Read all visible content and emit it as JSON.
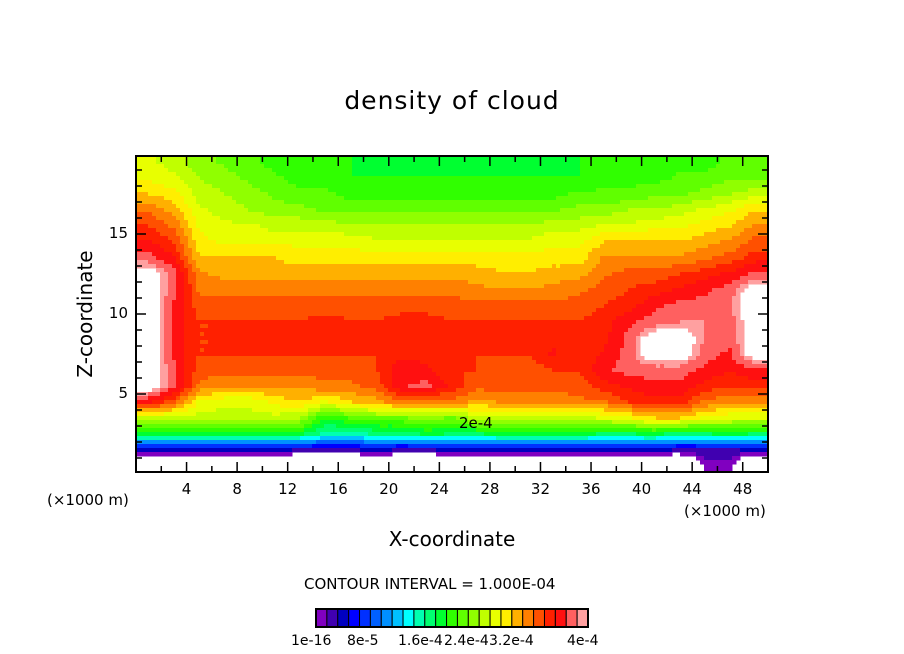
{
  "chart_data": {
    "type": "heatmap",
    "title": "density of cloud",
    "xlabel": "X-coordinate",
    "ylabel": "Z-coordinate",
    "x_unit": "(×1000 m)",
    "z_unit": "(×1000 m)",
    "xlim": [
      0,
      50
    ],
    "ylim": [
      0,
      19.9
    ],
    "x_ticks": [
      "4",
      "8",
      "12",
      "16",
      "20",
      "24",
      "28",
      "32",
      "36",
      "40",
      "44",
      "48"
    ],
    "x_tick_values": [
      4,
      8,
      12,
      16,
      20,
      24,
      28,
      32,
      36,
      40,
      44,
      48
    ],
    "y_ticks": [
      "5",
      "10",
      "15"
    ],
    "y_tick_values": [
      5,
      10,
      15
    ],
    "contour_interval": "CONTOUR INTERVAL = 1.000E-04",
    "contour_annotation": "2e-4",
    "value_unit": "1e-4",
    "colorbar_labels": [
      "1e-16",
      "8e-5",
      "1.6e-4",
      "2.4e-4",
      "3.2e-4",
      "4e-4"
    ],
    "colorbar_colors": [
      "#8000c0",
      "#4000b0",
      "#0000c0",
      "#0000ff",
      "#0030ff",
      "#0060ff",
      "#0090ff",
      "#00c0ff",
      "#00ffff",
      "#00ffb0",
      "#00ff70",
      "#00ff30",
      "#30ff00",
      "#60ff00",
      "#90ff00",
      "#c0ff00",
      "#e8ff00",
      "#ffee00",
      "#ffb000",
      "#ff8000",
      "#ff5000",
      "#ff2000",
      "#ff1010",
      "#ff6060",
      "#ffa0a0"
    ],
    "grid_x": [
      1,
      3,
      5,
      7,
      9,
      11,
      13,
      15,
      17,
      19,
      21,
      23,
      25,
      27,
      29,
      31,
      33,
      35,
      37,
      39,
      41,
      43,
      45,
      47,
      49
    ],
    "grid_z": [
      19.5,
      18.5,
      17.5,
      16.5,
      15.5,
      14.5,
      13.5,
      12.5,
      11.5,
      10.5,
      9.5,
      8.5,
      7.5,
      6.5,
      5.5,
      4.5,
      3.5,
      2.5,
      1.5,
      0.5
    ],
    "values": [
      [
        2.7,
        2.6,
        2.4,
        2.3,
        2.2,
        2.1,
        2.1,
        2.0,
        2.0,
        1.9,
        1.9,
        1.9,
        1.9,
        1.9,
        1.9,
        1.9,
        1.9,
        2.0,
        2.0,
        2.0,
        2.0,
        2.1,
        2.1,
        2.2,
        2.2
      ],
      [
        2.8,
        2.7,
        2.5,
        2.4,
        2.3,
        2.2,
        2.1,
        2.1,
        2.0,
        2.0,
        2.0,
        2.0,
        2.0,
        2.0,
        2.0,
        2.0,
        2.0,
        2.0,
        2.1,
        2.1,
        2.1,
        2.2,
        2.2,
        2.3,
        2.3
      ],
      [
        3.0,
        2.9,
        2.6,
        2.5,
        2.4,
        2.3,
        2.2,
        2.2,
        2.1,
        2.1,
        2.1,
        2.1,
        2.1,
        2.1,
        2.1,
        2.1,
        2.1,
        2.2,
        2.2,
        2.2,
        2.3,
        2.3,
        2.4,
        2.5,
        2.6
      ],
      [
        3.3,
        3.1,
        2.7,
        2.6,
        2.5,
        2.4,
        2.4,
        2.3,
        2.3,
        2.3,
        2.3,
        2.3,
        2.3,
        2.3,
        2.3,
        2.3,
        2.3,
        2.4,
        2.4,
        2.5,
        2.5,
        2.6,
        2.7,
        2.8,
        3.0
      ],
      [
        3.5,
        3.3,
        2.8,
        2.7,
        2.7,
        2.6,
        2.6,
        2.6,
        2.5,
        2.5,
        2.5,
        2.5,
        2.5,
        2.5,
        2.5,
        2.5,
        2.6,
        2.6,
        2.7,
        2.7,
        2.8,
        2.8,
        2.9,
        3.0,
        3.2
      ],
      [
        3.7,
        3.5,
        2.9,
        2.8,
        2.8,
        2.8,
        2.8,
        2.8,
        2.8,
        2.7,
        2.7,
        2.7,
        2.7,
        2.7,
        2.7,
        2.7,
        2.8,
        2.8,
        3.0,
        3.0,
        3.0,
        3.0,
        3.1,
        3.2,
        3.4
      ],
      [
        3.9,
        3.7,
        3.0,
        3.0,
        3.0,
        3.0,
        2.9,
        2.9,
        2.9,
        2.9,
        2.9,
        2.9,
        2.9,
        2.9,
        2.9,
        2.9,
        2.9,
        2.9,
        3.2,
        3.2,
        3.2,
        3.2,
        3.3,
        3.4,
        3.6
      ],
      [
        4.3,
        3.9,
        3.2,
        3.1,
        3.1,
        3.1,
        3.1,
        3.1,
        3.1,
        3.1,
        3.1,
        3.1,
        3.1,
        3.1,
        3.0,
        3.0,
        3.1,
        3.1,
        3.3,
        3.4,
        3.4,
        3.5,
        3.6,
        3.7,
        3.9
      ],
      [
        4.3,
        3.9,
        3.3,
        3.3,
        3.3,
        3.3,
        3.3,
        3.3,
        3.3,
        3.3,
        3.3,
        3.3,
        3.3,
        3.2,
        3.2,
        3.2,
        3.2,
        3.3,
        3.4,
        3.5,
        3.6,
        3.7,
        3.8,
        3.9,
        4.3
      ],
      [
        4.3,
        3.8,
        3.4,
        3.4,
        3.4,
        3.4,
        3.4,
        3.4,
        3.4,
        3.4,
        3.4,
        3.4,
        3.4,
        3.4,
        3.4,
        3.4,
        3.4,
        3.4,
        3.5,
        3.6,
        3.8,
        3.9,
        3.9,
        4.0,
        4.3
      ],
      [
        4.3,
        3.8,
        3.5,
        3.5,
        3.5,
        3.5,
        3.5,
        3.6,
        3.5,
        3.5,
        3.6,
        3.6,
        3.5,
        3.5,
        3.5,
        3.5,
        3.5,
        3.5,
        3.6,
        3.8,
        3.9,
        4.0,
        4.0,
        3.9,
        4.3
      ],
      [
        4.3,
        3.8,
        3.5,
        3.5,
        3.5,
        3.5,
        3.5,
        3.6,
        3.6,
        3.5,
        3.6,
        3.6,
        3.6,
        3.5,
        3.5,
        3.5,
        3.6,
        3.5,
        3.6,
        3.9,
        4.3,
        4.3,
        4.0,
        3.9,
        4.3
      ],
      [
        4.3,
        3.8,
        3.5,
        3.5,
        3.5,
        3.5,
        3.5,
        3.5,
        3.5,
        3.5,
        3.6,
        3.6,
        3.5,
        3.5,
        3.5,
        3.5,
        3.7,
        3.5,
        3.7,
        3.9,
        4.3,
        4.3,
        3.9,
        3.8,
        4.3
      ],
      [
        4.3,
        3.9,
        3.4,
        3.4,
        3.4,
        3.4,
        3.4,
        3.4,
        3.4,
        3.5,
        3.8,
        3.7,
        3.5,
        3.5,
        3.4,
        3.4,
        3.5,
        3.5,
        3.8,
        3.9,
        3.9,
        3.9,
        3.8,
        3.7,
        3.8
      ],
      [
        4.3,
        3.9,
        3.3,
        3.2,
        3.2,
        3.2,
        3.2,
        3.3,
        3.3,
        3.4,
        3.8,
        3.9,
        3.6,
        3.4,
        3.4,
        3.4,
        3.4,
        3.4,
        3.6,
        3.7,
        3.8,
        3.8,
        3.6,
        3.5,
        3.6
      ],
      [
        3.7,
        3.4,
        2.8,
        2.7,
        2.7,
        2.9,
        3.0,
        2.8,
        3.0,
        3.1,
        3.3,
        3.2,
        3.3,
        3.1,
        3.2,
        3.2,
        3.2,
        3.3,
        3.3,
        3.5,
        3.6,
        3.6,
        3.3,
        3.2,
        3.2
      ],
      [
        2.6,
        2.6,
        2.6,
        2.6,
        2.6,
        2.6,
        2.5,
        2.0,
        2.2,
        2.3,
        2.3,
        2.4,
        2.3,
        2.6,
        2.5,
        2.6,
        2.6,
        2.6,
        2.7,
        2.8,
        3.0,
        3.0,
        2.8,
        2.7,
        2.7
      ],
      [
        1.9,
        1.9,
        1.9,
        1.9,
        1.9,
        1.9,
        1.9,
        1.6,
        1.6,
        1.7,
        1.7,
        1.9,
        1.8,
        1.8,
        1.9,
        1.9,
        1.9,
        1.9,
        1.8,
        1.8,
        1.9,
        1.7,
        1.8,
        1.9,
        1.8
      ],
      [
        0.4,
        0.4,
        0.4,
        0.4,
        0.4,
        0.4,
        0.3,
        0.3,
        0.3,
        0.4,
        0.3,
        0.3,
        0.4,
        0.4,
        0.4,
        0.4,
        0.4,
        0.4,
        0.4,
        0.4,
        0.4,
        0.3,
        0.3,
        0.3,
        0.4
      ],
      [
        null,
        null,
        null,
        null,
        null,
        null,
        null,
        null,
        null,
        null,
        null,
        null,
        null,
        null,
        null,
        null,
        null,
        null,
        null,
        null,
        null,
        null,
        0.1,
        0.1,
        null
      ]
    ]
  }
}
